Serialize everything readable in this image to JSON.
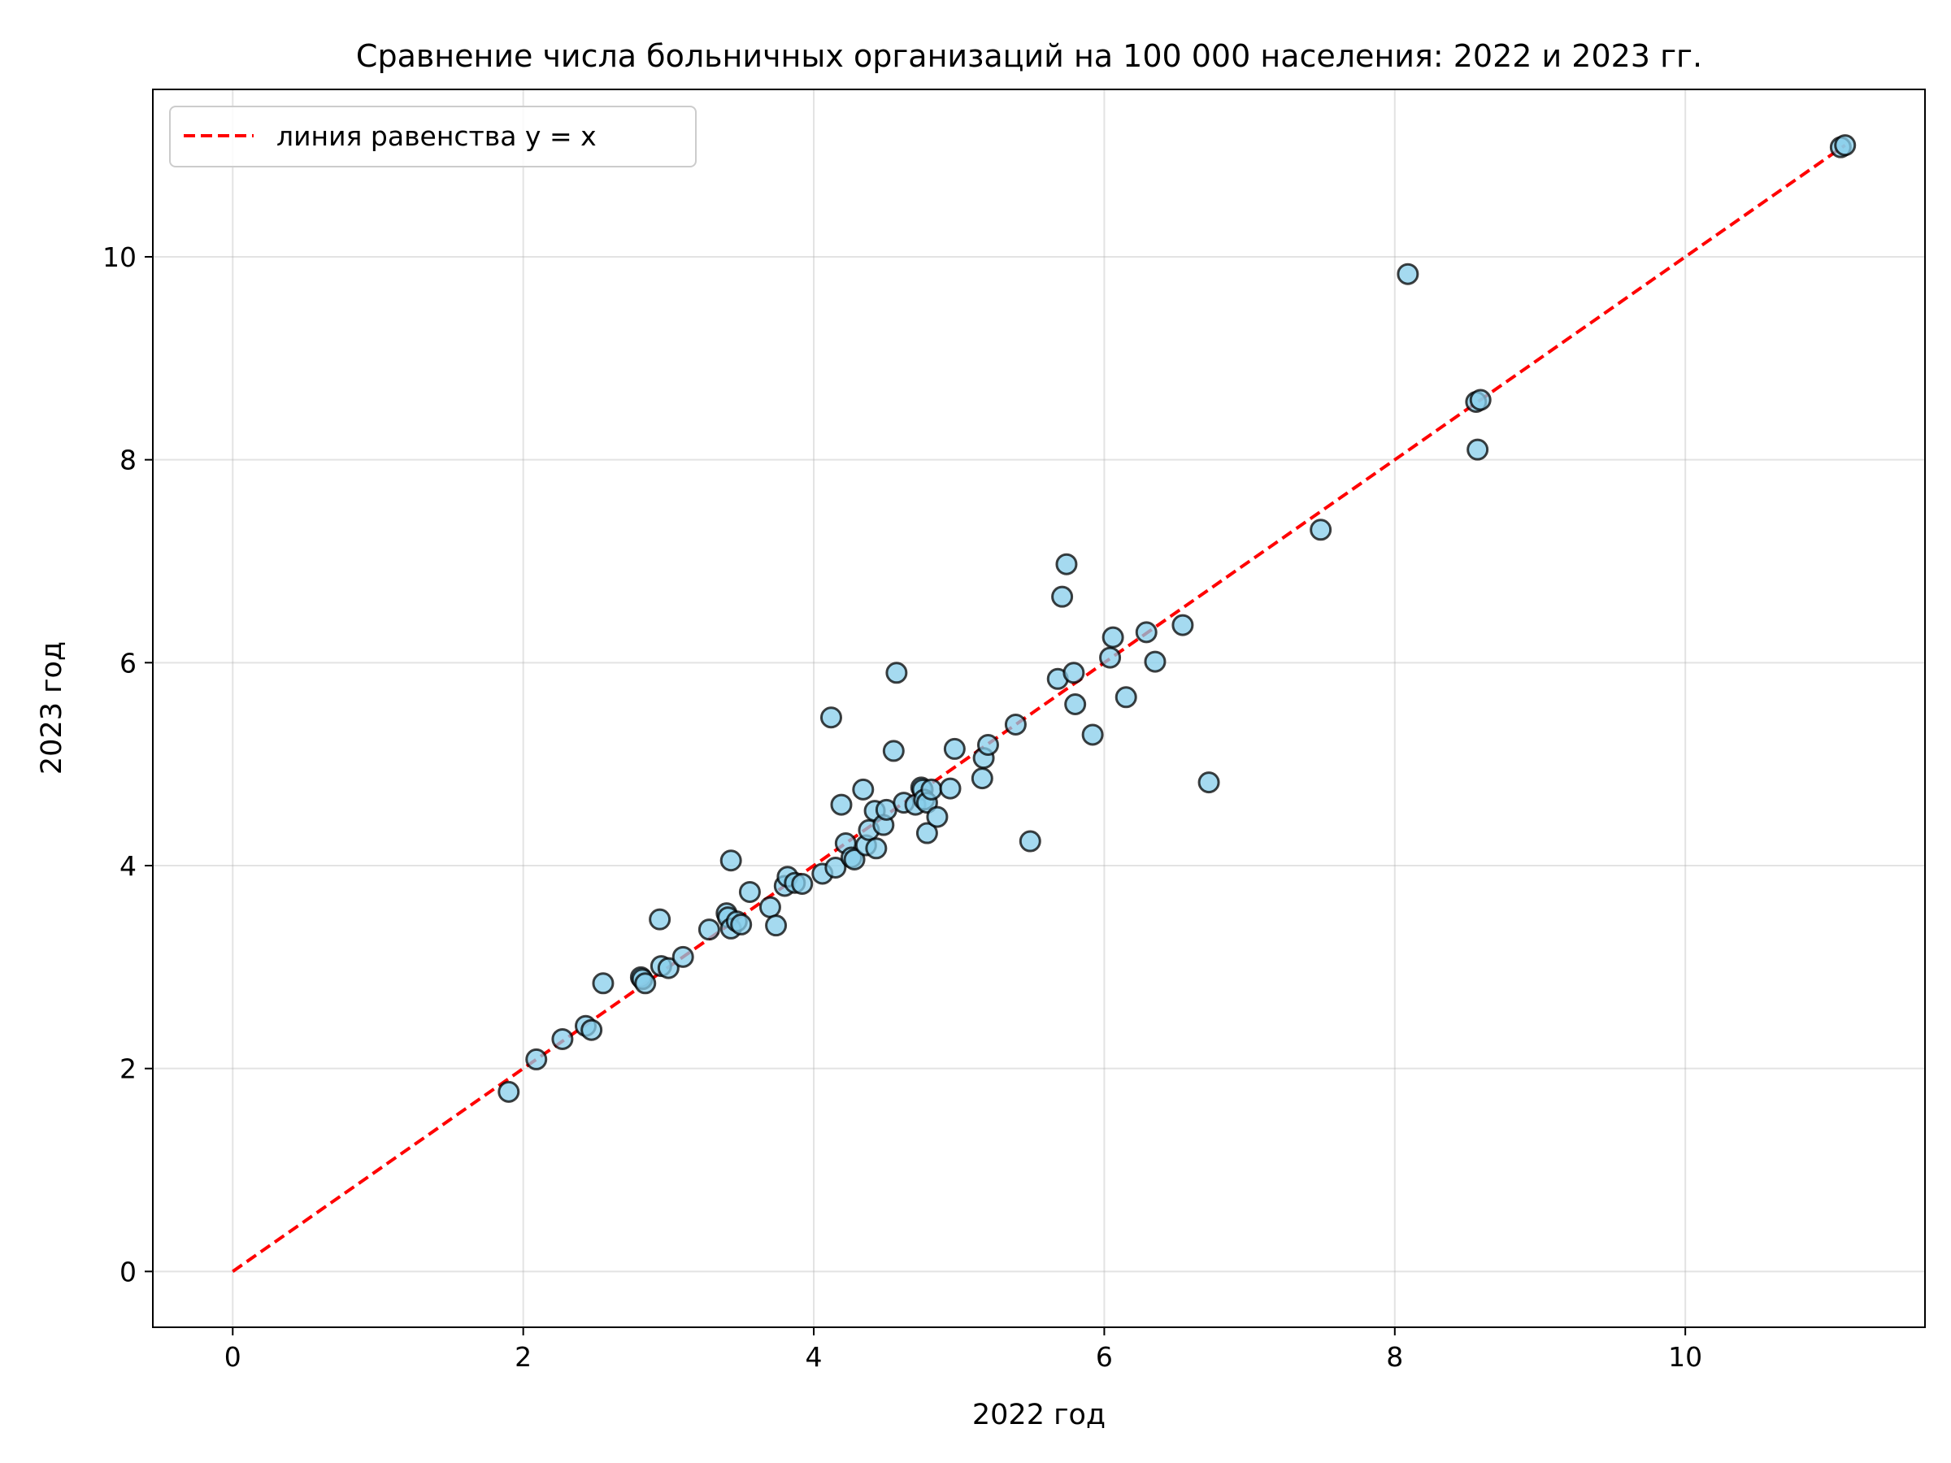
{
  "chart_data": {
    "type": "scatter",
    "title": "Сравнение числа больничных организаций на 100 000 населения: 2022 и 2023 гг.",
    "xlabel": "2022 год",
    "ylabel": "2023 год",
    "xlim": [
      -0.55,
      11.65
    ],
    "ylim": [
      -0.55,
      11.65
    ],
    "xticks": [
      0,
      2,
      4,
      6,
      8,
      10
    ],
    "yticks": [
      0,
      2,
      4,
      6,
      8,
      10
    ],
    "grid": true,
    "legend_position": "top-left",
    "legend": [
      "линия равенства y = x"
    ],
    "reference_line": {
      "name": "линия равенства y = x",
      "x": [
        0,
        11.1
      ],
      "y": [
        0,
        11.1
      ],
      "color": "#ff0000",
      "style": "dashed"
    },
    "marker_fill": "#87ceeb",
    "marker_edge": "#000000",
    "points": [
      [
        1.9,
        1.77
      ],
      [
        2.09,
        2.09
      ],
      [
        2.27,
        2.29
      ],
      [
        2.43,
        2.42
      ],
      [
        2.47,
        2.38
      ],
      [
        2.55,
        2.84
      ],
      [
        2.81,
        2.9
      ],
      [
        2.82,
        2.88
      ],
      [
        2.84,
        2.84
      ],
      [
        2.94,
        3.47
      ],
      [
        2.95,
        3.01
      ],
      [
        3.0,
        2.99
      ],
      [
        3.1,
        3.1
      ],
      [
        3.28,
        3.37
      ],
      [
        3.4,
        3.53
      ],
      [
        3.41,
        3.49
      ],
      [
        3.43,
        3.38
      ],
      [
        3.43,
        4.05
      ],
      [
        3.47,
        3.45
      ],
      [
        3.5,
        3.42
      ],
      [
        3.56,
        3.74
      ],
      [
        3.7,
        3.59
      ],
      [
        3.74,
        3.41
      ],
      [
        3.8,
        3.8
      ],
      [
        3.82,
        3.89
      ],
      [
        3.87,
        3.83
      ],
      [
        3.92,
        3.82
      ],
      [
        4.06,
        3.92
      ],
      [
        4.12,
        5.46
      ],
      [
        4.15,
        3.98
      ],
      [
        4.19,
        4.6
      ],
      [
        4.22,
        4.22
      ],
      [
        4.26,
        4.08
      ],
      [
        4.28,
        4.06
      ],
      [
        4.34,
        4.75
      ],
      [
        4.36,
        4.2
      ],
      [
        4.38,
        4.35
      ],
      [
        4.42,
        4.54
      ],
      [
        4.43,
        4.17
      ],
      [
        4.48,
        4.4
      ],
      [
        4.5,
        4.55
      ],
      [
        4.55,
        5.13
      ],
      [
        4.57,
        5.9
      ],
      [
        4.62,
        4.62
      ],
      [
        4.7,
        4.6
      ],
      [
        4.74,
        4.77
      ],
      [
        4.75,
        4.75
      ],
      [
        4.76,
        4.65
      ],
      [
        4.78,
        4.62
      ],
      [
        4.78,
        4.32
      ],
      [
        4.81,
        4.75
      ],
      [
        4.85,
        4.48
      ],
      [
        4.94,
        4.76
      ],
      [
        4.97,
        5.15
      ],
      [
        5.16,
        4.86
      ],
      [
        5.17,
        5.06
      ],
      [
        5.2,
        5.19
      ],
      [
        5.39,
        5.39
      ],
      [
        5.49,
        4.24
      ],
      [
        5.68,
        5.84
      ],
      [
        5.71,
        6.65
      ],
      [
        5.74,
        6.97
      ],
      [
        5.79,
        5.9
      ],
      [
        5.8,
        5.59
      ],
      [
        5.92,
        5.29
      ],
      [
        6.04,
        6.05
      ],
      [
        6.06,
        6.25
      ],
      [
        6.15,
        5.66
      ],
      [
        6.29,
        6.3
      ],
      [
        6.35,
        6.01
      ],
      [
        6.54,
        6.37
      ],
      [
        6.72,
        4.82
      ],
      [
        7.49,
        7.31
      ],
      [
        8.09,
        9.83
      ],
      [
        8.56,
        8.57
      ],
      [
        8.59,
        8.59
      ],
      [
        8.57,
        8.1
      ],
      [
        11.07,
        11.08
      ],
      [
        11.1,
        11.1
      ]
    ]
  }
}
